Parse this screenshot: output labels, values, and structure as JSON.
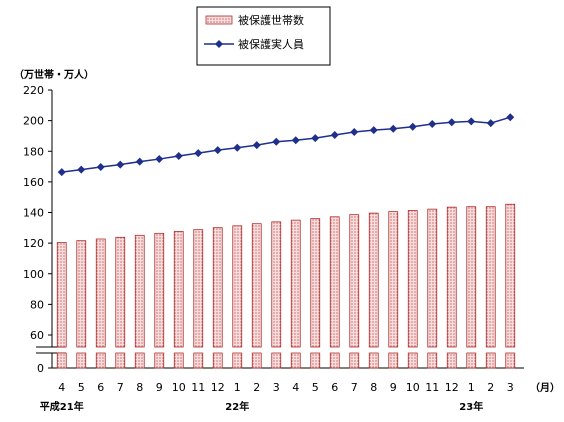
{
  "chart_data": {
    "type": "bar",
    "y_unit_label": "（万世帯・万人）",
    "x_unit_label": "（月）",
    "categories": [
      "4",
      "5",
      "6",
      "7",
      "8",
      "9",
      "10",
      "11",
      "12",
      "1",
      "2",
      "3",
      "4",
      "5",
      "6",
      "7",
      "8",
      "9",
      "10",
      "11",
      "12",
      "1",
      "2",
      "3"
    ],
    "year_labels": [
      {
        "label": "平成21年",
        "at_index": 0
      },
      {
        "label": "22年",
        "at_index": 9
      },
      {
        "label": "23年",
        "at_index": 21
      }
    ],
    "y_ticks": [
      0,
      60,
      80,
      100,
      120,
      140,
      160,
      180,
      200,
      220
    ],
    "ylim": [
      60,
      220
    ],
    "axis_break": true,
    "series": [
      {
        "name": "被保護世帯数",
        "kind": "bar",
        "values": [
          120.4,
          121.6,
          122.7,
          123.8,
          125.1,
          126.4,
          127.6,
          128.8,
          130.1,
          131.3,
          132.7,
          133.9,
          135.0,
          136.0,
          137.2,
          138.6,
          139.6,
          140.6,
          141.3,
          142.2,
          143.5,
          143.8,
          143.8,
          145.4
        ]
      },
      {
        "name": "被保護実人員",
        "kind": "line",
        "values": [
          166.4,
          168.0,
          169.7,
          171.3,
          173.2,
          174.9,
          176.9,
          178.8,
          180.7,
          182.3,
          184.0,
          186.2,
          187.2,
          188.6,
          190.6,
          192.6,
          193.8,
          194.7,
          196.0,
          197.8,
          198.9,
          199.5,
          198.4,
          202.2
        ]
      }
    ],
    "colors": {
      "bar_fill": "#f6dede",
      "bar_dots": "#c03030",
      "bar_stroke": "#b03030",
      "line": "#1f2f8c"
    }
  }
}
